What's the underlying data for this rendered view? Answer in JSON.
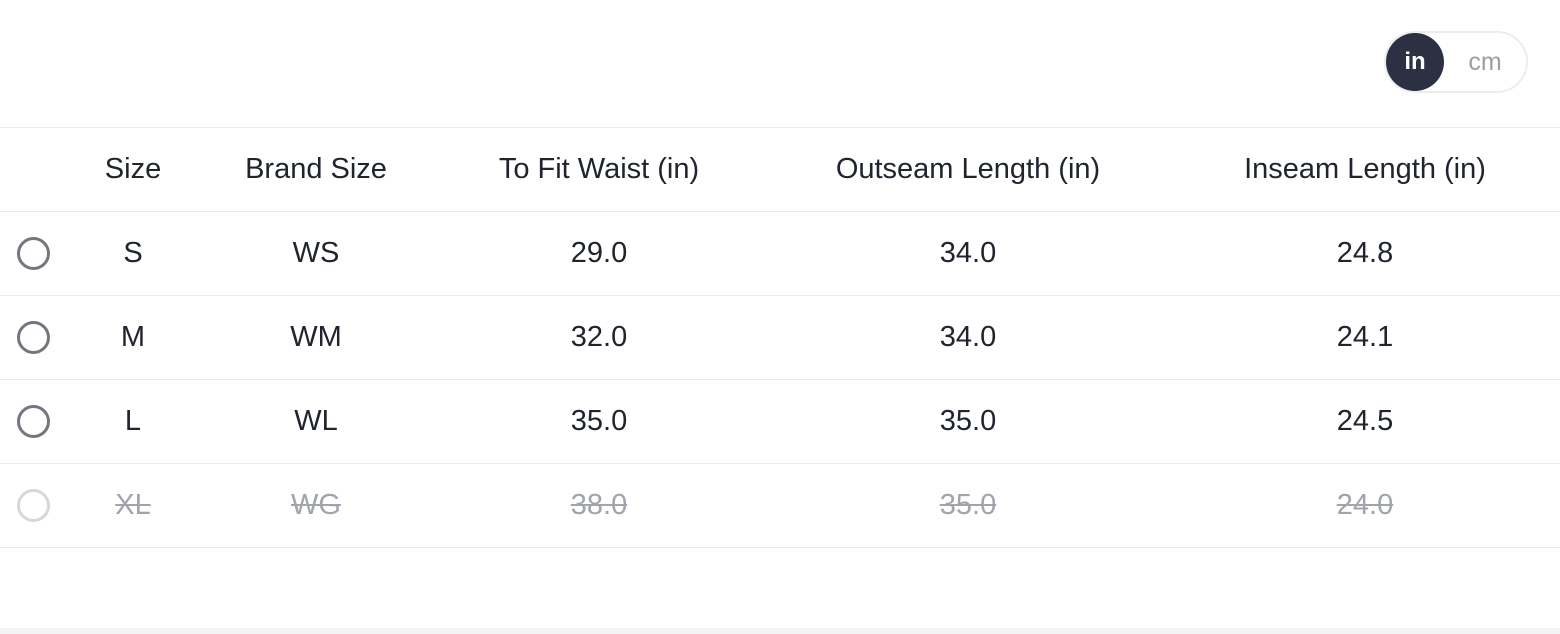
{
  "unit_toggle": {
    "selected": "in",
    "options": [
      {
        "label": "in",
        "selected": true
      },
      {
        "label": "cm",
        "selected": false
      }
    ]
  },
  "size_chart": {
    "columns": [
      "Size",
      "Brand Size",
      "To Fit Waist (in)",
      "Outseam Length (in)",
      "Inseam Length (in)"
    ],
    "rows": [
      {
        "size": "S",
        "brand_size": "WS",
        "to_fit_waist_in": "29.0",
        "outseam_length_in": "34.0",
        "inseam_length_in": "24.8",
        "available": true
      },
      {
        "size": "M",
        "brand_size": "WM",
        "to_fit_waist_in": "32.0",
        "outseam_length_in": "34.0",
        "inseam_length_in": "24.1",
        "available": true
      },
      {
        "size": "L",
        "brand_size": "WL",
        "to_fit_waist_in": "35.0",
        "outseam_length_in": "35.0",
        "inseam_length_in": "24.5",
        "available": true
      },
      {
        "size": "XL",
        "brand_size": "WG",
        "to_fit_waist_in": "38.0",
        "outseam_length_in": "35.0",
        "inseam_length_in": "24.0",
        "available": false
      }
    ]
  },
  "colors": {
    "text_primary": "#20242f",
    "text_disabled": "#a1a4ac",
    "toggle_active_bg": "#2b3143",
    "toggle_active_text": "#ffffff",
    "toggle_inactive_text": "#9b9ea6",
    "row_border": "#eaeaec",
    "radio_border": "#73767f",
    "radio_border_disabled": "#d6d7db",
    "bottom_band": "#f4f4f5"
  }
}
